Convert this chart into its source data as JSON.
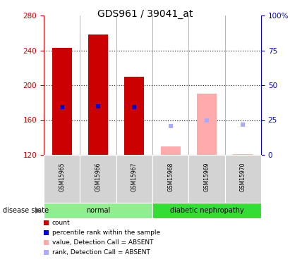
{
  "title": "GDS961 / 39041_at",
  "samples": [
    "GSM15965",
    "GSM15966",
    "GSM15967",
    "GSM15968",
    "GSM15969",
    "GSM15970"
  ],
  "bar_bottom": 120,
  "ylim_left": [
    120,
    280
  ],
  "ylim_right": [
    0,
    100
  ],
  "yticks_left": [
    120,
    160,
    200,
    240,
    280
  ],
  "yticks_right": [
    0,
    25,
    50,
    75,
    100
  ],
  "ytick_labels_right": [
    "0",
    "25",
    "50",
    "75",
    "100%"
  ],
  "bar_data": [
    {
      "sample": "GSM15965",
      "value": 243,
      "rank": 175,
      "absent": false,
      "rank_val": null
    },
    {
      "sample": "GSM15966",
      "value": 258,
      "rank": 176,
      "absent": false,
      "rank_val": null
    },
    {
      "sample": "GSM15967",
      "value": 210,
      "rank": 175,
      "absent": false,
      "rank_val": null
    },
    {
      "sample": "GSM15968",
      "value": 130,
      "rank": null,
      "absent": true,
      "rank_val": 153
    },
    {
      "sample": "GSM15969",
      "value": 190,
      "rank": null,
      "absent": true,
      "rank_val": 160
    },
    {
      "sample": "GSM15970",
      "value": 121,
      "rank": null,
      "absent": true,
      "rank_val": 155
    }
  ],
  "bar_color_normal": "#cc0000",
  "bar_color_absent": "#ffaaaa",
  "rank_marker_color_normal": "#0000cc",
  "rank_marker_color_absent": "#aaaaff",
  "left_axis_color": "#cc0000",
  "right_axis_color": "#0000cc",
  "legend_items": [
    {
      "label": "count",
      "color": "#cc0000"
    },
    {
      "label": "percentile rank within the sample",
      "color": "#0000cc"
    },
    {
      "label": "value, Detection Call = ABSENT",
      "color": "#ffaaaa"
    },
    {
      "label": "rank, Detection Call = ABSENT",
      "color": "#aaaaff"
    }
  ],
  "disease_state_label": "disease state",
  "background_color": "#ffffff",
  "group_label_bg_normal": "#90ee90",
  "group_label_bg_diabetic": "#33dd33",
  "sample_box_color": "#d3d3d3",
  "grid_dotted_color": "#333333",
  "divider_color": "#aaaaaa"
}
